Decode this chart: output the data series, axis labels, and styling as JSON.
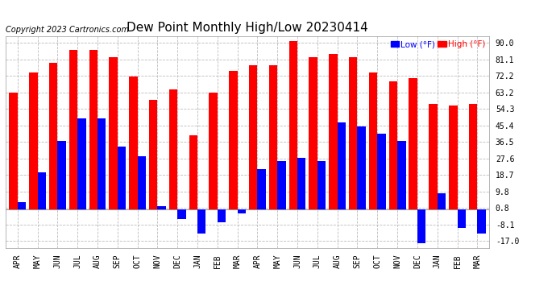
{
  "title": "Dew Point Monthly High/Low 20230414",
  "copyright": "Copyright 2023 Cartronics.com",
  "legend_low": "Low",
  "legend_high": "High",
  "legend_unit": "(°F)",
  "categories": [
    "APR",
    "MAY",
    "JUN",
    "JUL",
    "AUG",
    "SEP",
    "OCT",
    "NOV",
    "DEC",
    "JAN",
    "FEB",
    "MAR",
    "APR",
    "MAY",
    "JUN",
    "JUL",
    "AUG",
    "SEP",
    "OCT",
    "NOV",
    "DEC",
    "JAN",
    "FEB",
    "MAR"
  ],
  "high_values": [
    63.0,
    74.0,
    79.0,
    86.0,
    86.0,
    82.0,
    72.0,
    59.0,
    65.0,
    40.0,
    63.0,
    75.0,
    78.0,
    78.0,
    91.0,
    82.0,
    84.0,
    82.0,
    74.0,
    69.0,
    71.0,
    57.0,
    56.0,
    57.0
  ],
  "low_values": [
    4.0,
    20.0,
    37.0,
    49.0,
    49.0,
    34.0,
    29.0,
    2.0,
    -5.0,
    -13.0,
    -7.0,
    -2.0,
    22.0,
    26.0,
    28.0,
    26.0,
    47.0,
    45.0,
    41.0,
    37.0,
    -18.0,
    9.0,
    -10.0,
    -13.0
  ],
  "yticks": [
    -17.0,
    -8.1,
    0.8,
    9.8,
    18.7,
    27.6,
    36.5,
    45.4,
    54.3,
    63.2,
    72.2,
    81.1,
    90.0
  ],
  "ylim": [
    -20.5,
    93.5
  ],
  "bar_color_high": "#ff0000",
  "bar_color_low": "#0000ff",
  "background_color": "#ffffff",
  "grid_color": "#bbbbbb",
  "title_fontsize": 11,
  "tick_fontsize": 7,
  "legend_fontsize": 7.5,
  "copyright_fontsize": 7
}
